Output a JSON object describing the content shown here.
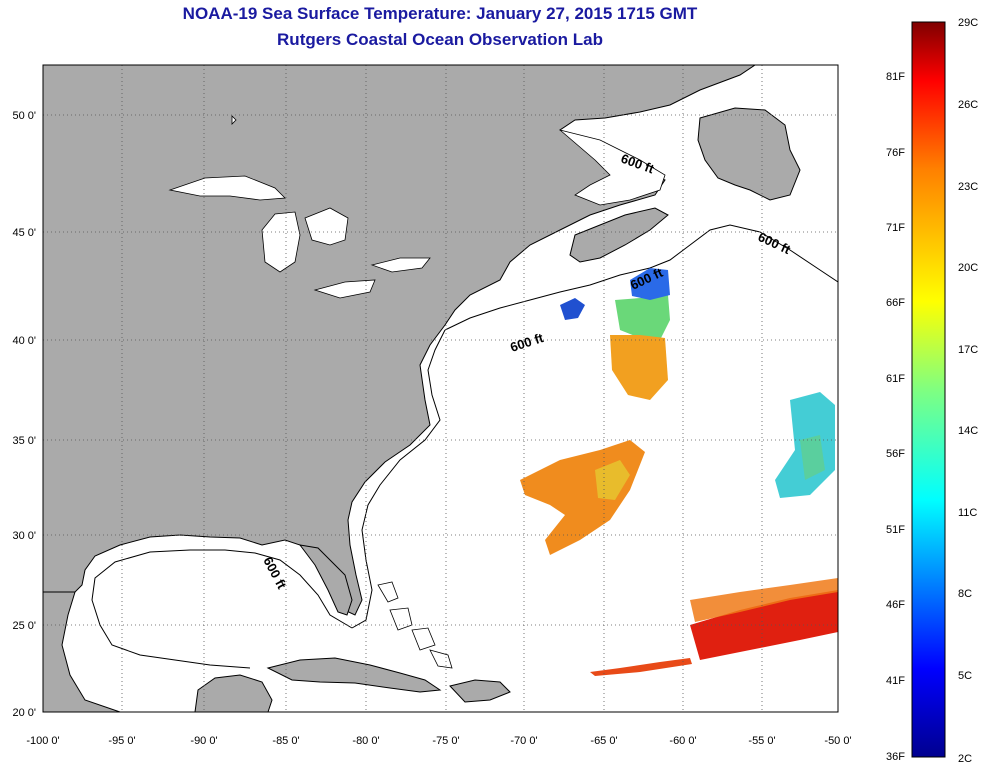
{
  "title": "NOAA-19 Sea Surface Temperature:  January 27, 2015 1715 GMT",
  "subtitle": "Rutgers Coastal Ocean Observation Lab",
  "map": {
    "lat_labels": [
      "50 0'",
      "45 0'",
      "40 0'",
      "35 0'",
      "30 0'",
      "25 0'",
      "20 0'"
    ],
    "lon_labels": [
      "-100 0'",
      "-95 0'",
      "-90 0'",
      "-85 0'",
      "-80 0'",
      "-75 0'",
      "-70 0'",
      "-65 0'",
      "-60 0'",
      "-55 0'",
      "-50 0'"
    ],
    "contour_labels": [
      "600 ft",
      "600 ft",
      "600 ft",
      "600 ft",
      "600 ft"
    ],
    "land_color": "#aaaaaa",
    "water_color": "#ffffff"
  },
  "colorbar": {
    "celsius_labels": [
      "29C",
      "26C",
      "23C",
      "20C",
      "17C",
      "14C",
      "11C",
      "8C",
      "5C",
      "2C"
    ],
    "fahrenheit_labels": [
      "81F",
      "76F",
      "71F",
      "66F",
      "61F",
      "56F",
      "51F",
      "46F",
      "41F",
      "36F"
    ],
    "colors": [
      "#7f0000",
      "#ff0000",
      "#ff8000",
      "#ffff00",
      "#80ff80",
      "#00ffff",
      "#0080ff",
      "#0000ff",
      "#00008f"
    ]
  }
}
